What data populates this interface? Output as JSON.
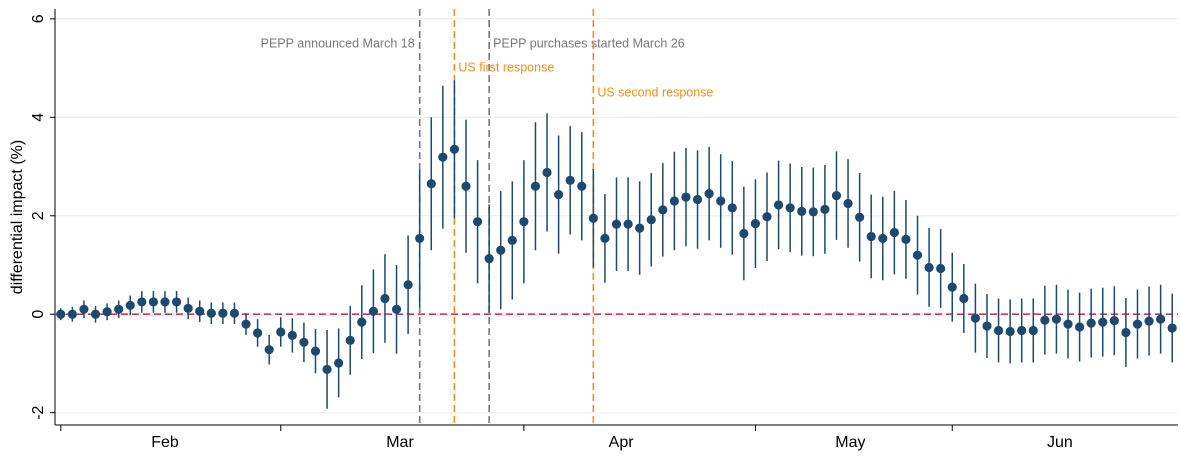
{
  "chart_data": {
    "type": "errorbar",
    "ylabel": "differential impact (%)",
    "x": [
      0,
      1,
      2,
      3,
      4,
      5,
      6,
      7,
      8,
      9,
      10,
      11,
      12,
      13,
      14,
      15,
      16,
      17,
      18,
      19,
      20,
      21,
      22,
      23,
      24,
      25,
      26,
      27,
      28,
      29,
      30,
      31,
      32,
      33,
      34,
      35,
      36,
      37,
      38,
      39,
      40,
      41,
      42,
      43,
      44,
      45,
      46,
      47,
      48,
      49,
      50,
      51,
      52,
      53,
      54,
      55,
      56,
      57,
      58,
      59,
      60,
      61,
      62,
      63,
      64,
      65,
      66,
      67,
      68,
      69,
      70,
      71,
      72,
      73,
      74,
      75,
      76,
      77,
      78,
      79,
      80,
      81,
      82,
      83,
      84,
      85,
      86,
      87,
      88,
      89,
      90,
      91,
      92,
      93,
      94,
      95,
      96
    ],
    "values": [
      0.0,
      0.0,
      0.1,
      0.0,
      0.05,
      0.1,
      0.18,
      0.25,
      0.25,
      0.25,
      0.25,
      0.12,
      0.06,
      0.02,
      0.02,
      0.02,
      -0.2,
      -0.38,
      -0.72,
      -0.36,
      -0.43,
      -0.57,
      -0.75,
      -1.12,
      -0.99,
      -0.53,
      -0.16,
      0.06,
      0.32,
      0.1,
      0.6,
      1.54,
      2.65,
      3.19,
      3.35,
      2.6,
      1.88,
      1.13,
      1.3,
      1.5,
      1.88,
      2.6,
      2.88,
      2.43,
      2.72,
      2.6,
      1.95,
      1.54,
      1.83,
      1.83,
      1.75,
      1.92,
      2.12,
      2.3,
      2.38,
      2.33,
      2.45,
      2.3,
      2.16,
      1.64,
      1.84,
      1.98,
      2.22,
      2.16,
      2.09,
      2.08,
      2.13,
      2.41,
      2.25,
      1.97,
      1.58,
      1.54,
      1.66,
      1.52,
      1.2,
      0.95,
      0.93,
      0.55,
      0.32,
      -0.08,
      -0.24,
      -0.33,
      -0.35,
      -0.33,
      -0.33,
      -0.12,
      -0.1,
      -0.2,
      -0.26,
      -0.18,
      -0.16,
      -0.13,
      -0.37,
      -0.2,
      -0.14,
      -0.1,
      -0.28
    ],
    "errors": [
      0.12,
      0.15,
      0.18,
      0.17,
      0.17,
      0.18,
      0.2,
      0.22,
      0.22,
      0.22,
      0.22,
      0.22,
      0.22,
      0.22,
      0.22,
      0.22,
      0.22,
      0.28,
      0.3,
      0.3,
      0.35,
      0.4,
      0.45,
      0.8,
      0.7,
      0.7,
      0.75,
      0.85,
      0.9,
      0.9,
      1.0,
      1.4,
      1.35,
      1.45,
      1.4,
      1.35,
      1.25,
      1.1,
      1.2,
      1.2,
      1.25,
      1.3,
      1.2,
      1.2,
      1.1,
      1.1,
      1.0,
      0.9,
      0.95,
      0.95,
      0.95,
      0.95,
      0.95,
      1.0,
      1.0,
      1.0,
      0.95,
      0.95,
      0.95,
      0.95,
      0.9,
      0.9,
      0.9,
      0.9,
      0.9,
      0.9,
      0.9,
      0.9,
      0.9,
      0.9,
      0.85,
      0.85,
      0.85,
      0.8,
      0.8,
      0.8,
      0.8,
      0.7,
      0.7,
      0.7,
      0.65,
      0.65,
      0.65,
      0.65,
      0.65,
      0.7,
      0.7,
      0.7,
      0.7,
      0.7,
      0.7,
      0.7,
      0.7,
      0.7,
      0.7,
      0.7,
      0.7
    ],
    "color": "#1d4970",
    "xlim": [
      -0.5,
      96.5
    ],
    "ylim": [
      -2.25,
      6.2
    ],
    "yticks": [
      -2,
      0,
      2,
      4,
      6
    ],
    "xticks": [
      {
        "value": 9,
        "label": "Feb"
      },
      {
        "value": 29.3,
        "label": "Mar"
      },
      {
        "value": 48.4,
        "label": "Apr"
      },
      {
        "value": 68.2,
        "label": "May"
      },
      {
        "value": 86.3,
        "label": "Jun"
      }
    ],
    "xminorticks": [
      0,
      19,
      40,
      60,
      77
    ],
    "grid": true,
    "reference_line": {
      "y": 0,
      "color": "#c8385e"
    },
    "annotations": [
      {
        "text": "PEPP announced March 18",
        "x": 31,
        "color": "#777777"
      },
      {
        "text": "US first response",
        "x": 34,
        "color": "#f28e1c"
      },
      {
        "text": "PEPP purchases started March 26",
        "x": 37,
        "color": "#777777"
      },
      {
        "text": "US second response",
        "x": 46,
        "color": "#f28e1c"
      }
    ]
  }
}
